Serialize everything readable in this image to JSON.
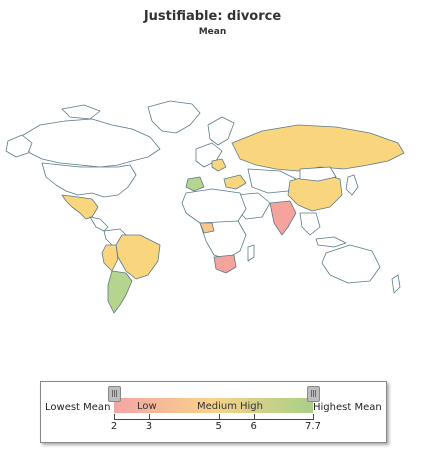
{
  "title": "Justifiable: divorce",
  "subtitle": "Mean",
  "legend": {
    "lowest_label": "Lowest Mean",
    "highest_label": "Highest Mean",
    "bands": [
      "Low",
      "Medium",
      "High"
    ],
    "min": 2,
    "max": 7.7,
    "ticks": [
      "2",
      "3",
      "5",
      "6",
      "7.7"
    ],
    "colors": {
      "low": "#f5a5a5",
      "medium": "#f8d28a",
      "high": "#a8cf88"
    }
  },
  "map_colors": {
    "no_data": "#ffffff",
    "border": "#5a7a88",
    "water_shadow": "#c9c9c9"
  }
}
